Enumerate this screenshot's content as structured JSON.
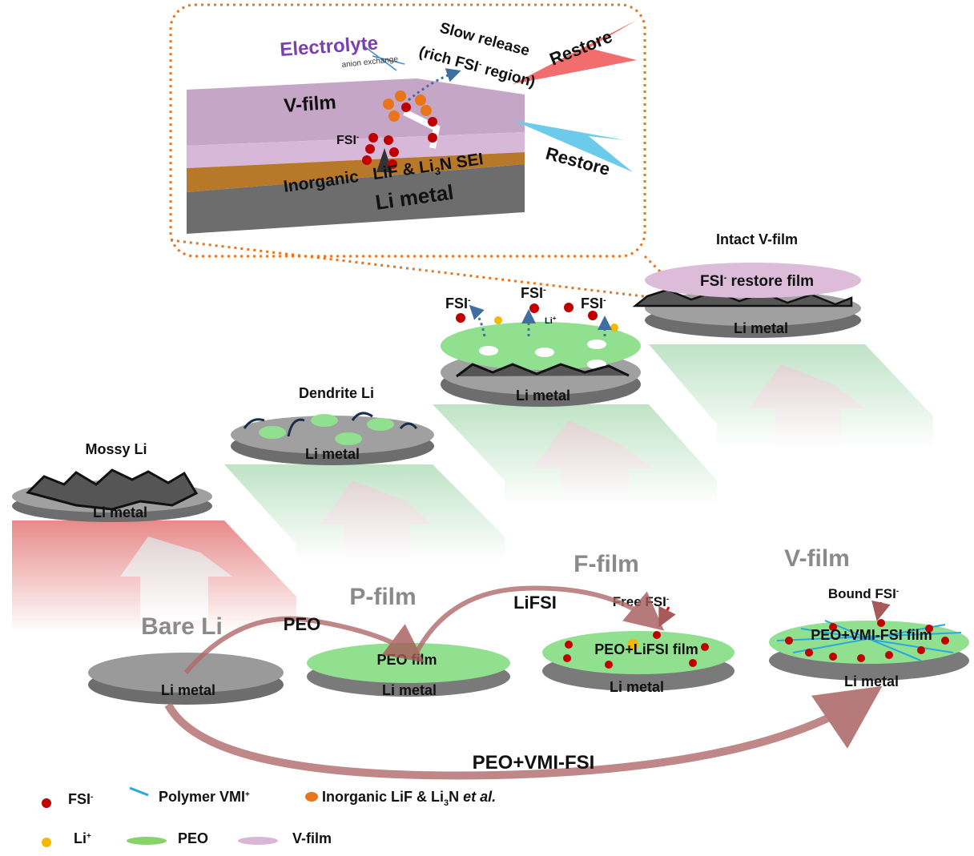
{
  "inset": {
    "electrolyte": "Electrolyte",
    "anion_exchange": "anion exchange",
    "slow_release_1": "Slow release",
    "slow_release_2": "(rich FSI",
    "slow_release_sup": "-",
    "slow_release_3": " region)",
    "restore_top": "Restore",
    "restore_bottom": "Restore",
    "vfilm": "V-film",
    "fsi": "FSI",
    "fsi_sup": "-",
    "sei_1": "Inorganic",
    "sei_2": "LiF & Li",
    "sei_sub": "3",
    "sei_3": "N SEI",
    "li_metal": "Li metal"
  },
  "stages_top": [
    {
      "title": "Mossy Li",
      "base": "Li metal"
    },
    {
      "title": "Dendrite Li",
      "base": "Li metal"
    },
    {
      "fsi": "FSI",
      "sup": "-",
      "li": "Li",
      "li_sup": "+",
      "base": "Li metal"
    },
    {
      "title": "Intact V-film",
      "film": "FSI",
      "film_sup": "-",
      "film_rest": " restore film",
      "base": "Li metal"
    }
  ],
  "step_labels": [
    "Bare Li",
    "P-film",
    "F-film",
    "V-film"
  ],
  "stages_bottom": [
    {
      "base": "Li metal"
    },
    {
      "film": "PEO film",
      "base": "Li metal"
    },
    {
      "film": "PEO+LiFSI film",
      "base": "Li metal",
      "note": "Free FSI",
      "note_sup": "-"
    },
    {
      "film": "PEO+VMI-FSI film",
      "base": "Li metal",
      "note": "Bound FSI",
      "note_sup": "-"
    }
  ],
  "arrows": {
    "peo": "PEO",
    "lifsi": "LiFSI",
    "peo_vmi": "PEO+VMI-FSI"
  },
  "legend": [
    {
      "label": "FSI",
      "sup": "-",
      "color": "#c00000"
    },
    {
      "label": "Polymer VMI",
      "sup": "+",
      "color": "#29a8e0"
    },
    {
      "label": "Inorganic LiF & Li",
      "sub": "3",
      "rest": "N ",
      "italic": "et al.",
      "color": "#e8751a"
    },
    {
      "label": "Li",
      "sup": "+",
      "color": "#f5b800"
    },
    {
      "label": "PEO",
      "color": "#86d36a"
    },
    {
      "label": "V-film",
      "color": "#d9b6d6"
    }
  ],
  "colors": {
    "li_metal": "#7a7a7a",
    "peo": "#90e090",
    "vfilm": "#dcbcd8",
    "sei": "#b8782a",
    "dotted_box": "#e8751a"
  }
}
